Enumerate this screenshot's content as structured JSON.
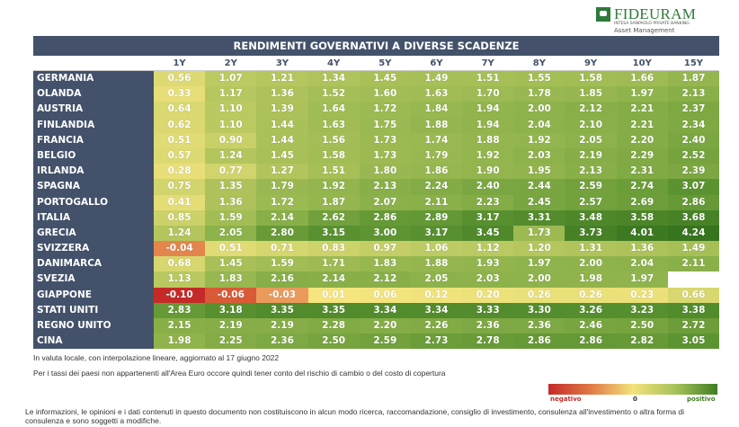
{
  "logo": {
    "name": "FIDEURAM",
    "subtitle": "INTESA SANPAOLO PRIVATE BANKING",
    "division": "Asset Management"
  },
  "chart_data": {
    "type": "heatmap",
    "title": "RENDIMENTI GOVERNATIVI A DIVERSE SCADENZE",
    "columns": [
      "1Y",
      "2Y",
      "3Y",
      "4Y",
      "5Y",
      "6Y",
      "7Y",
      "8Y",
      "9Y",
      "10Y",
      "15Y"
    ],
    "rows": [
      {
        "country": "GERMANIA",
        "values": [
          0.56,
          1.07,
          1.21,
          1.34,
          1.45,
          1.49,
          1.51,
          1.55,
          1.58,
          1.66,
          1.87
        ]
      },
      {
        "country": "OLANDA",
        "values": [
          0.33,
          1.17,
          1.36,
          1.52,
          1.6,
          1.63,
          1.7,
          1.78,
          1.85,
          1.97,
          2.13
        ]
      },
      {
        "country": "AUSTRIA",
        "values": [
          0.64,
          1.1,
          1.39,
          1.64,
          1.72,
          1.84,
          1.94,
          2.0,
          2.12,
          2.21,
          2.37
        ]
      },
      {
        "country": "FINLANDIA",
        "values": [
          0.62,
          1.1,
          1.44,
          1.63,
          1.75,
          1.88,
          1.94,
          2.04,
          2.1,
          2.21,
          2.34
        ]
      },
      {
        "country": "FRANCIA",
        "values": [
          0.51,
          0.9,
          1.44,
          1.56,
          1.73,
          1.74,
          1.88,
          1.92,
          2.05,
          2.2,
          2.4
        ]
      },
      {
        "country": "BELGIO",
        "values": [
          0.57,
          1.24,
          1.45,
          1.58,
          1.73,
          1.79,
          1.92,
          2.03,
          2.19,
          2.29,
          2.52
        ]
      },
      {
        "country": "IRLANDA",
        "values": [
          0.28,
          0.77,
          1.27,
          1.51,
          1.8,
          1.86,
          1.9,
          1.95,
          2.13,
          2.31,
          2.39
        ]
      },
      {
        "country": "SPAGNA",
        "values": [
          0.75,
          1.35,
          1.79,
          1.92,
          2.13,
          2.24,
          2.4,
          2.44,
          2.59,
          2.74,
          3.07
        ]
      },
      {
        "country": "PORTOGALLO",
        "values": [
          0.41,
          1.36,
          1.72,
          1.87,
          2.07,
          2.11,
          2.23,
          2.45,
          2.57,
          2.69,
          2.86
        ]
      },
      {
        "country": "ITALIA",
        "values": [
          0.85,
          1.59,
          2.14,
          2.62,
          2.86,
          2.89,
          3.17,
          3.31,
          3.48,
          3.58,
          3.68
        ]
      },
      {
        "country": "GRECIA",
        "values": [
          1.24,
          2.05,
          2.8,
          3.15,
          3.0,
          3.17,
          3.45,
          1.73,
          3.73,
          4.01,
          4.24
        ]
      },
      {
        "country": "SVIZZERA",
        "values": [
          -0.04,
          0.51,
          0.71,
          0.83,
          0.97,
          1.06,
          1.12,
          1.2,
          1.31,
          1.36,
          1.49
        ]
      },
      {
        "country": "DANIMARCA",
        "values": [
          0.68,
          1.45,
          1.59,
          1.71,
          1.83,
          1.88,
          1.93,
          1.97,
          2.0,
          2.04,
          2.11
        ]
      },
      {
        "country": "SVEZIA",
        "values": [
          1.13,
          1.83,
          2.16,
          2.14,
          2.12,
          2.05,
          2.03,
          2.0,
          1.98,
          1.97,
          null
        ]
      },
      {
        "country": "GIAPPONE",
        "values": [
          -0.1,
          -0.06,
          -0.03,
          0.01,
          0.06,
          0.12,
          0.2,
          0.26,
          0.26,
          0.23,
          0.66
        ]
      },
      {
        "country": "STATI UNITI",
        "values": [
          2.83,
          3.18,
          3.35,
          3.35,
          3.34,
          3.34,
          3.33,
          3.3,
          3.26,
          3.23,
          3.38
        ]
      },
      {
        "country": "REGNO UNITO",
        "values": [
          2.15,
          2.19,
          2.19,
          2.28,
          2.2,
          2.26,
          2.36,
          2.36,
          2.46,
          2.5,
          2.72
        ]
      },
      {
        "country": "CINA",
        "values": [
          1.98,
          2.25,
          2.36,
          2.5,
          2.59,
          2.73,
          2.78,
          2.86,
          2.86,
          2.82,
          3.05
        ]
      }
    ],
    "color_scale": {
      "negative": "#c62a28",
      "zero": "#f3e27c",
      "positive": "#3d7f22"
    },
    "legend": {
      "negative": "negativo",
      "zero": "0",
      "positive": "positivo"
    }
  },
  "notes": {
    "line1": "In valuta locale, con interpolazione lineare, aggiornato al 17 giugno 2022",
    "line2": "Per i tassi dei paesi non appartenenti all'Area Euro occore quindi tener conto del rischio di cambio o del costo di copertura"
  },
  "disclaimer": "Le informazioni, le opinioni e i dati contenuti in questo documento non costituiscono in alcun modo ricerca, raccomandazione, consiglio di investimento, consulenza all'investimento o altra forma di consulenza e sono soggetti a modifiche."
}
